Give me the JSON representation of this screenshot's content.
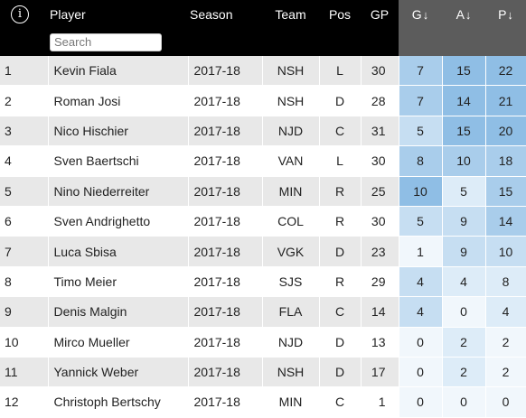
{
  "header": {
    "player": "Player",
    "season": "Season",
    "team": "Team",
    "pos": "Pos",
    "gp": "GP",
    "g": "G",
    "a": "A",
    "p": "P",
    "sort_arrow": "↓",
    "info_icon": "i"
  },
  "search": {
    "placeholder": "Search"
  },
  "stat_colors": {
    "header_bg": "#5c5c5c",
    "scale": [
      "#f1f7fc",
      "#ddecf8",
      "#c6def2",
      "#a9cdeb",
      "#8fbee5"
    ]
  },
  "rows": [
    {
      "rank": "1",
      "player": "Kevin Fiala",
      "season": "2017-18",
      "team": "NSH",
      "pos": "L",
      "gp": "30",
      "g": "7",
      "a": "15",
      "p": "22"
    },
    {
      "rank": "2",
      "player": "Roman Josi",
      "season": "2017-18",
      "team": "NSH",
      "pos": "D",
      "gp": "28",
      "g": "7",
      "a": "14",
      "p": "21"
    },
    {
      "rank": "3",
      "player": "Nico Hischier",
      "season": "2017-18",
      "team": "NJD",
      "pos": "C",
      "gp": "31",
      "g": "5",
      "a": "15",
      "p": "20"
    },
    {
      "rank": "4",
      "player": "Sven Baertschi",
      "season": "2017-18",
      "team": "VAN",
      "pos": "L",
      "gp": "30",
      "g": "8",
      "a": "10",
      "p": "18"
    },
    {
      "rank": "5",
      "player": "Nino Niederreiter",
      "season": "2017-18",
      "team": "MIN",
      "pos": "R",
      "gp": "25",
      "g": "10",
      "a": "5",
      "p": "15"
    },
    {
      "rank": "6",
      "player": "Sven Andrighetto",
      "season": "2017-18",
      "team": "COL",
      "pos": "R",
      "gp": "30",
      "g": "5",
      "a": "9",
      "p": "14"
    },
    {
      "rank": "7",
      "player": "Luca Sbisa",
      "season": "2017-18",
      "team": "VGK",
      "pos": "D",
      "gp": "23",
      "g": "1",
      "a": "9",
      "p": "10"
    },
    {
      "rank": "8",
      "player": "Timo Meier",
      "season": "2017-18",
      "team": "SJS",
      "pos": "R",
      "gp": "29",
      "g": "4",
      "a": "4",
      "p": "8"
    },
    {
      "rank": "9",
      "player": "Denis Malgin",
      "season": "2017-18",
      "team": "FLA",
      "pos": "C",
      "gp": "14",
      "g": "4",
      "a": "0",
      "p": "4"
    },
    {
      "rank": "10",
      "player": "Mirco Mueller",
      "season": "2017-18",
      "team": "NJD",
      "pos": "D",
      "gp": "13",
      "g": "0",
      "a": "2",
      "p": "2"
    },
    {
      "rank": "11",
      "player": "Yannick Weber",
      "season": "2017-18",
      "team": "NSH",
      "pos": "D",
      "gp": "17",
      "g": "0",
      "a": "2",
      "p": "2"
    },
    {
      "rank": "12",
      "player": "Christoph Bertschy",
      "season": "2017-18",
      "team": "MIN",
      "pos": "C",
      "gp": "1",
      "g": "0",
      "a": "0",
      "p": "0"
    }
  ]
}
